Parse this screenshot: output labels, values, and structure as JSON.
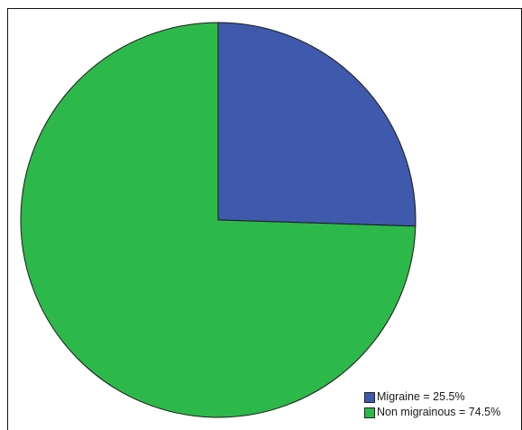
{
  "chart_data": {
    "type": "pie",
    "title": "",
    "slices": [
      {
        "label": "Migraine",
        "value": 25.5,
        "color": "#3f5aad",
        "legend_text": "Migraine = 25.5%"
      },
      {
        "label": "Non migrainous",
        "value": 74.5,
        "color": "#2db84a",
        "legend_text": "Non migrainous = 74.5%"
      }
    ],
    "start_angle_deg": 0,
    "direction": "clockwise",
    "legend_position": "bottom-right",
    "edge_color": "#1a1a1a"
  }
}
